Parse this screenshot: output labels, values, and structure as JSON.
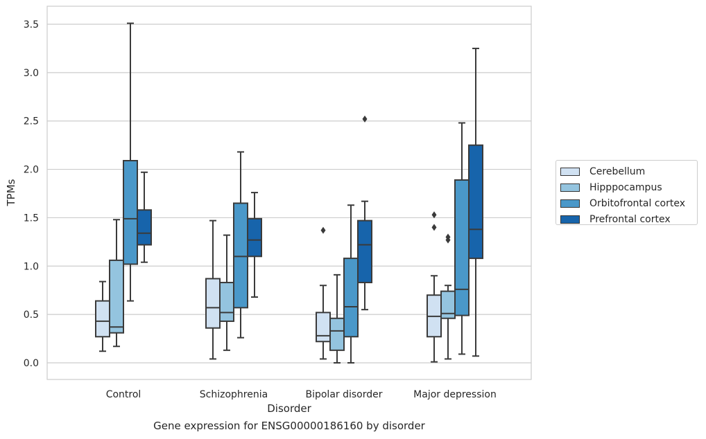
{
  "caption": "Gene expression for ENSG00000186160 by disorder",
  "chart_data": {
    "type": "box",
    "title": "",
    "xlabel": "Disorder",
    "ylabel": "TPMs",
    "ylim": [
      -0.17,
      3.69
    ],
    "yticks": [
      0.0,
      0.5,
      1.0,
      1.5,
      2.0,
      2.5,
      3.0,
      3.5
    ],
    "ytick_labels": [
      "0.0",
      "0.5",
      "1.0",
      "1.5",
      "2.0",
      "2.5",
      "3.0",
      "3.5"
    ],
    "grid": "horizontal",
    "legend_position": "right",
    "categories": [
      "Control",
      "Schizophrenia",
      "Bipolar disorder",
      "Major depression"
    ],
    "series": [
      {
        "name": "Cerebellum",
        "color": "#d0e1f2",
        "boxes": [
          {
            "whisker_low": 0.12,
            "q1": 0.27,
            "median": 0.43,
            "q3": 0.64,
            "whisker_high": 0.84,
            "outliers": []
          },
          {
            "whisker_low": 0.04,
            "q1": 0.36,
            "median": 0.57,
            "q3": 0.87,
            "whisker_high": 1.47,
            "outliers": []
          },
          {
            "whisker_low": 0.04,
            "q1": 0.22,
            "median": 0.28,
            "q3": 0.52,
            "whisker_high": 0.8,
            "outliers": [
              1.37
            ]
          },
          {
            "whisker_low": 0.01,
            "q1": 0.27,
            "median": 0.48,
            "q3": 0.7,
            "whisker_high": 0.9,
            "outliers": [
              1.4,
              1.53
            ]
          }
        ]
      },
      {
        "name": "Hipppocampus",
        "color": "#94c4df",
        "boxes": [
          {
            "whisker_low": 0.17,
            "q1": 0.31,
            "median": 0.37,
            "q3": 1.06,
            "whisker_high": 1.48,
            "outliers": []
          },
          {
            "whisker_low": 0.13,
            "q1": 0.43,
            "median": 0.52,
            "q3": 0.83,
            "whisker_high": 1.32,
            "outliers": []
          },
          {
            "whisker_low": 0.0,
            "q1": 0.13,
            "median": 0.33,
            "q3": 0.46,
            "whisker_high": 0.91,
            "outliers": []
          },
          {
            "whisker_low": 0.04,
            "q1": 0.46,
            "median": 0.51,
            "q3": 0.74,
            "whisker_high": 0.8,
            "outliers": [
              1.27,
              1.3
            ]
          }
        ]
      },
      {
        "name": "Orbitofrontal cortex",
        "color": "#4a98c9",
        "boxes": [
          {
            "whisker_low": 0.64,
            "q1": 1.02,
            "median": 1.49,
            "q3": 2.09,
            "whisker_high": 3.51,
            "outliers": []
          },
          {
            "whisker_low": 0.26,
            "q1": 0.57,
            "median": 1.1,
            "q3": 1.65,
            "whisker_high": 2.18,
            "outliers": []
          },
          {
            "whisker_low": 0.0,
            "q1": 0.27,
            "median": 0.58,
            "q3": 1.08,
            "whisker_high": 1.63,
            "outliers": []
          },
          {
            "whisker_low": 0.09,
            "q1": 0.49,
            "median": 0.76,
            "q3": 1.89,
            "whisker_high": 2.48,
            "outliers": []
          }
        ]
      },
      {
        "name": "Prefrontal cortex",
        "color": "#1764ab",
        "boxes": [
          {
            "whisker_low": 1.04,
            "q1": 1.22,
            "median": 1.34,
            "q3": 1.58,
            "whisker_high": 1.97,
            "outliers": []
          },
          {
            "whisker_low": 0.68,
            "q1": 1.1,
            "median": 1.27,
            "q3": 1.49,
            "whisker_high": 1.76,
            "outliers": []
          },
          {
            "whisker_low": 0.55,
            "q1": 0.83,
            "median": 1.22,
            "q3": 1.47,
            "whisker_high": 1.67,
            "outliers": [
              2.52
            ]
          },
          {
            "whisker_low": 0.07,
            "q1": 1.08,
            "median": 1.38,
            "q3": 2.25,
            "whisker_high": 3.25,
            "outliers": []
          }
        ]
      }
    ]
  }
}
